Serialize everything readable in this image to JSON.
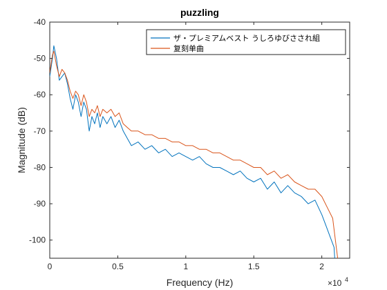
{
  "chart_data": {
    "type": "line",
    "title": "puzzling",
    "xlabel": "Frequency (Hz)",
    "ylabel": "Magnitude (dB)",
    "x_exponent_label": "×10",
    "x_exponent_power": "4",
    "xlim": [
      0,
      22050
    ],
    "ylim": [
      -105,
      -40
    ],
    "x_ticks": [
      0,
      5000,
      10000,
      15000,
      20000
    ],
    "x_tick_labels": [
      "0",
      "0.5",
      "1",
      "1.5",
      "2"
    ],
    "y_ticks": [
      -100,
      -90,
      -80,
      -70,
      -60,
      -50,
      -40
    ],
    "y_tick_labels": [
      "-100",
      "-90",
      "-80",
      "-70",
      "-60",
      "-50",
      "-40"
    ],
    "grid": false,
    "legend_position": "top-right",
    "series": [
      {
        "name": "ザ・プレミアムベスト うしろゆびさされ組",
        "color": "#0072BD",
        "x": [
          0,
          200,
          300,
          500,
          700,
          900,
          1100,
          1300,
          1500,
          1700,
          1900,
          2100,
          2300,
          2500,
          2700,
          2900,
          3100,
          3300,
          3500,
          3700,
          3900,
          4200,
          4500,
          4800,
          5100,
          5400,
          5700,
          6000,
          6500,
          7000,
          7500,
          8000,
          8500,
          9000,
          9500,
          10000,
          10500,
          11000,
          11500,
          12000,
          12500,
          13000,
          13500,
          14000,
          14500,
          15000,
          15500,
          16000,
          16500,
          17000,
          17500,
          18000,
          18500,
          19000,
          19500,
          20000,
          20300,
          20600,
          20900,
          21000
        ],
        "values": [
          -55,
          -50,
          -46.5,
          -50,
          -56,
          -55,
          -54,
          -57,
          -61,
          -64,
          -60,
          -62,
          -66,
          -62,
          -64,
          -70,
          -66,
          -68,
          -65,
          -69,
          -66,
          -68,
          -66,
          -69,
          -67,
          -70,
          -72,
          -74,
          -73,
          -75,
          -74,
          -76,
          -75,
          -77,
          -76,
          -77,
          -78,
          -77,
          -79,
          -80,
          -80,
          -81,
          -82,
          -81,
          -83,
          -84,
          -83,
          -86,
          -84,
          -87,
          -85,
          -87,
          -88,
          -90,
          -89,
          -93,
          -96,
          -99,
          -102,
          -108
        ]
      },
      {
        "name": "复刻单曲",
        "color": "#D95319",
        "x": [
          0,
          200,
          300,
          500,
          700,
          900,
          1100,
          1300,
          1500,
          1700,
          1900,
          2100,
          2300,
          2500,
          2700,
          2900,
          3100,
          3300,
          3500,
          3700,
          3900,
          4200,
          4500,
          4800,
          5100,
          5400,
          5700,
          6000,
          6500,
          7000,
          7500,
          8000,
          8500,
          9000,
          9500,
          10000,
          10500,
          11000,
          11500,
          12000,
          12500,
          13000,
          13500,
          14000,
          14500,
          15000,
          15500,
          16000,
          16500,
          17000,
          17500,
          18000,
          18500,
          19000,
          19500,
          20000,
          20400,
          20800,
          21000,
          21200
        ],
        "values": [
          -54,
          -49,
          -48,
          -52,
          -55,
          -53,
          -54,
          -56,
          -59,
          -61,
          -59,
          -60,
          -63,
          -60,
          -62,
          -66,
          -64,
          -65,
          -63,
          -66,
          -64,
          -65,
          -64,
          -66,
          -65,
          -68,
          -69,
          -70,
          -70,
          -71,
          -71,
          -72,
          -72,
          -73,
          -73,
          -74,
          -74,
          -75,
          -75,
          -76,
          -76,
          -77,
          -78,
          -78,
          -79,
          -80,
          -80,
          -82,
          -81,
          -83,
          -82,
          -84,
          -85,
          -86,
          -86,
          -88,
          -91,
          -94,
          -100,
          -106
        ]
      }
    ]
  }
}
